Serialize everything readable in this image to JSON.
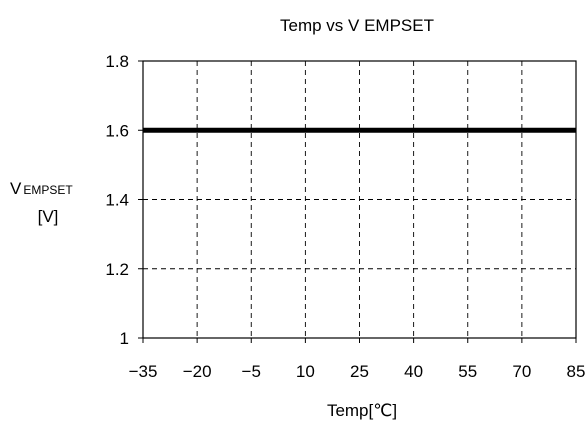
{
  "chart_data": {
    "type": "line",
    "title": "Temp vs V EMPSET",
    "xlabel": "Temp[℃]",
    "ylabel_main": "V",
    "ylabel_sub": "EMPSET",
    "ylabel_unit": "[V]",
    "x_ticks": [
      "-35",
      "-20",
      "-5",
      "10",
      "25",
      "40",
      "55",
      "70",
      "85"
    ],
    "y_ticks": [
      "1",
      "1.2",
      "1.4",
      "1.6",
      "1.8"
    ],
    "xlim": [
      -35,
      85
    ],
    "ylim": [
      1,
      1.8
    ],
    "grid": true,
    "series": [
      {
        "x": [
          -35,
          85
        ],
        "y": [
          1.6,
          1.6
        ],
        "color": "#000000"
      }
    ]
  }
}
